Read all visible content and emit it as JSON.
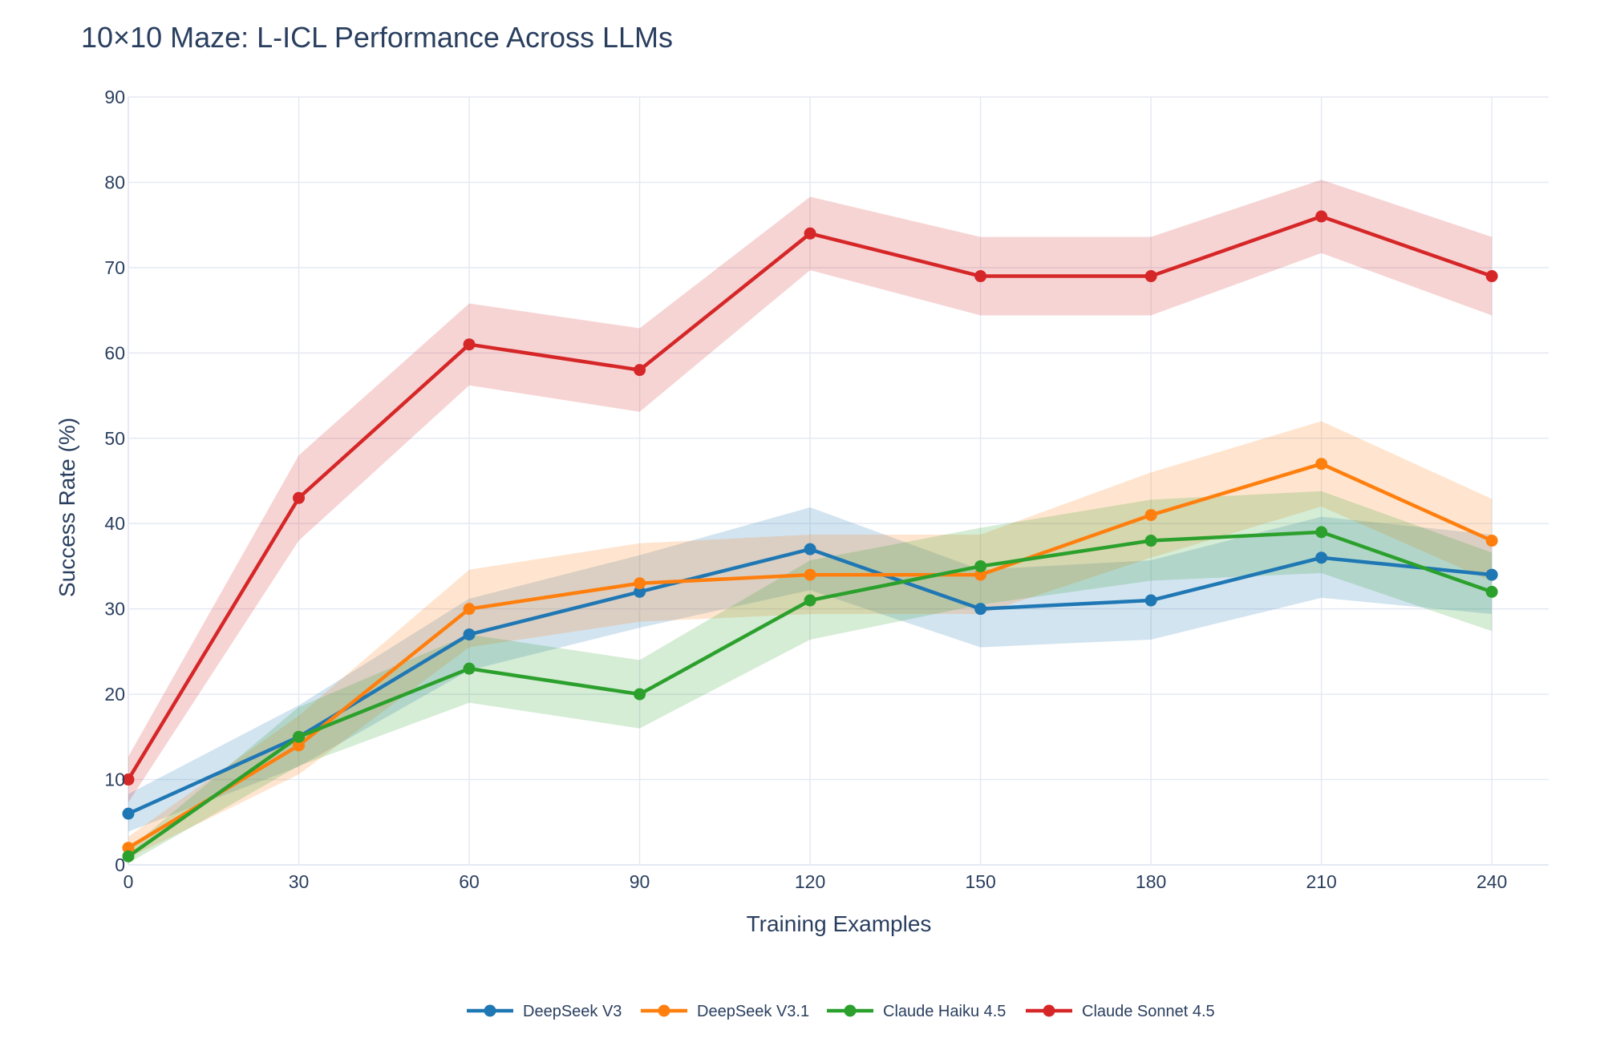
{
  "chart_data": {
    "type": "line",
    "title": "10×10 Maze: L-ICL Performance Across LLMs",
    "xlabel": "Training Examples",
    "ylabel": "Success Rate (%)",
    "xlim": [
      0,
      250
    ],
    "ylim": [
      0,
      90
    ],
    "x": [
      0,
      30,
      60,
      90,
      120,
      150,
      180,
      210,
      240
    ],
    "xticks": [
      "0",
      "30",
      "60",
      "90",
      "120",
      "150",
      "180",
      "210",
      "240"
    ],
    "yticks": [
      "0",
      "10",
      "20",
      "30",
      "40",
      "50",
      "60",
      "70",
      "80",
      "90"
    ],
    "legend_position": "bottom-center",
    "series": [
      {
        "name": "DeepSeek V3",
        "color": "#1f77b4",
        "band_color": "rgba(31,119,180,0.2)",
        "values": [
          6,
          15,
          27,
          32,
          37,
          30,
          31,
          36,
          34
        ],
        "lower": [
          3.9,
          11.5,
          22.8,
          27.8,
          32.2,
          25.5,
          26.4,
          31.3,
          29.4
        ],
        "upper": [
          8.3,
          18.7,
          31.2,
          36.3,
          41.9,
          34.6,
          35.7,
          40.8,
          38.7
        ]
      },
      {
        "name": "DeepSeek V3.1",
        "color": "#ff7f0e",
        "band_color": "rgba(255,127,14,0.2)",
        "values": [
          2,
          14,
          30,
          33,
          34,
          34,
          41,
          47,
          38
        ],
        "lower": [
          0.8,
          10.6,
          25.5,
          28.5,
          29.4,
          29.4,
          36,
          42,
          33.2
        ],
        "upper": [
          3.3,
          17.5,
          34.6,
          37.7,
          38.7,
          38.7,
          46,
          52,
          42.9
        ]
      },
      {
        "name": "Claude Haiku 4.5",
        "color": "#2ca02c",
        "band_color": "rgba(44,160,44,0.2)",
        "values": [
          1,
          15,
          23,
          20,
          31,
          35,
          38,
          39,
          32
        ],
        "lower": [
          0.2,
          11.6,
          19,
          16,
          26.4,
          30.5,
          33.3,
          34.2,
          27.4
        ],
        "upper": [
          1.8,
          18.5,
          27,
          24,
          35.7,
          39.5,
          42.8,
          43.8,
          36.6
        ]
      },
      {
        "name": "Claude Sonnet 4.5",
        "color": "#d62728",
        "band_color": "rgba(214,39,40,0.2)",
        "values": [
          10,
          43,
          61,
          58,
          74,
          69,
          69,
          76,
          69
        ],
        "lower": [
          7.3,
          38,
          56.2,
          53.1,
          69.7,
          64.4,
          64.4,
          71.7,
          64.4
        ],
        "upper": [
          12.7,
          48,
          65.8,
          62.9,
          78.3,
          73.6,
          73.6,
          80.3,
          73.6
        ]
      }
    ]
  }
}
